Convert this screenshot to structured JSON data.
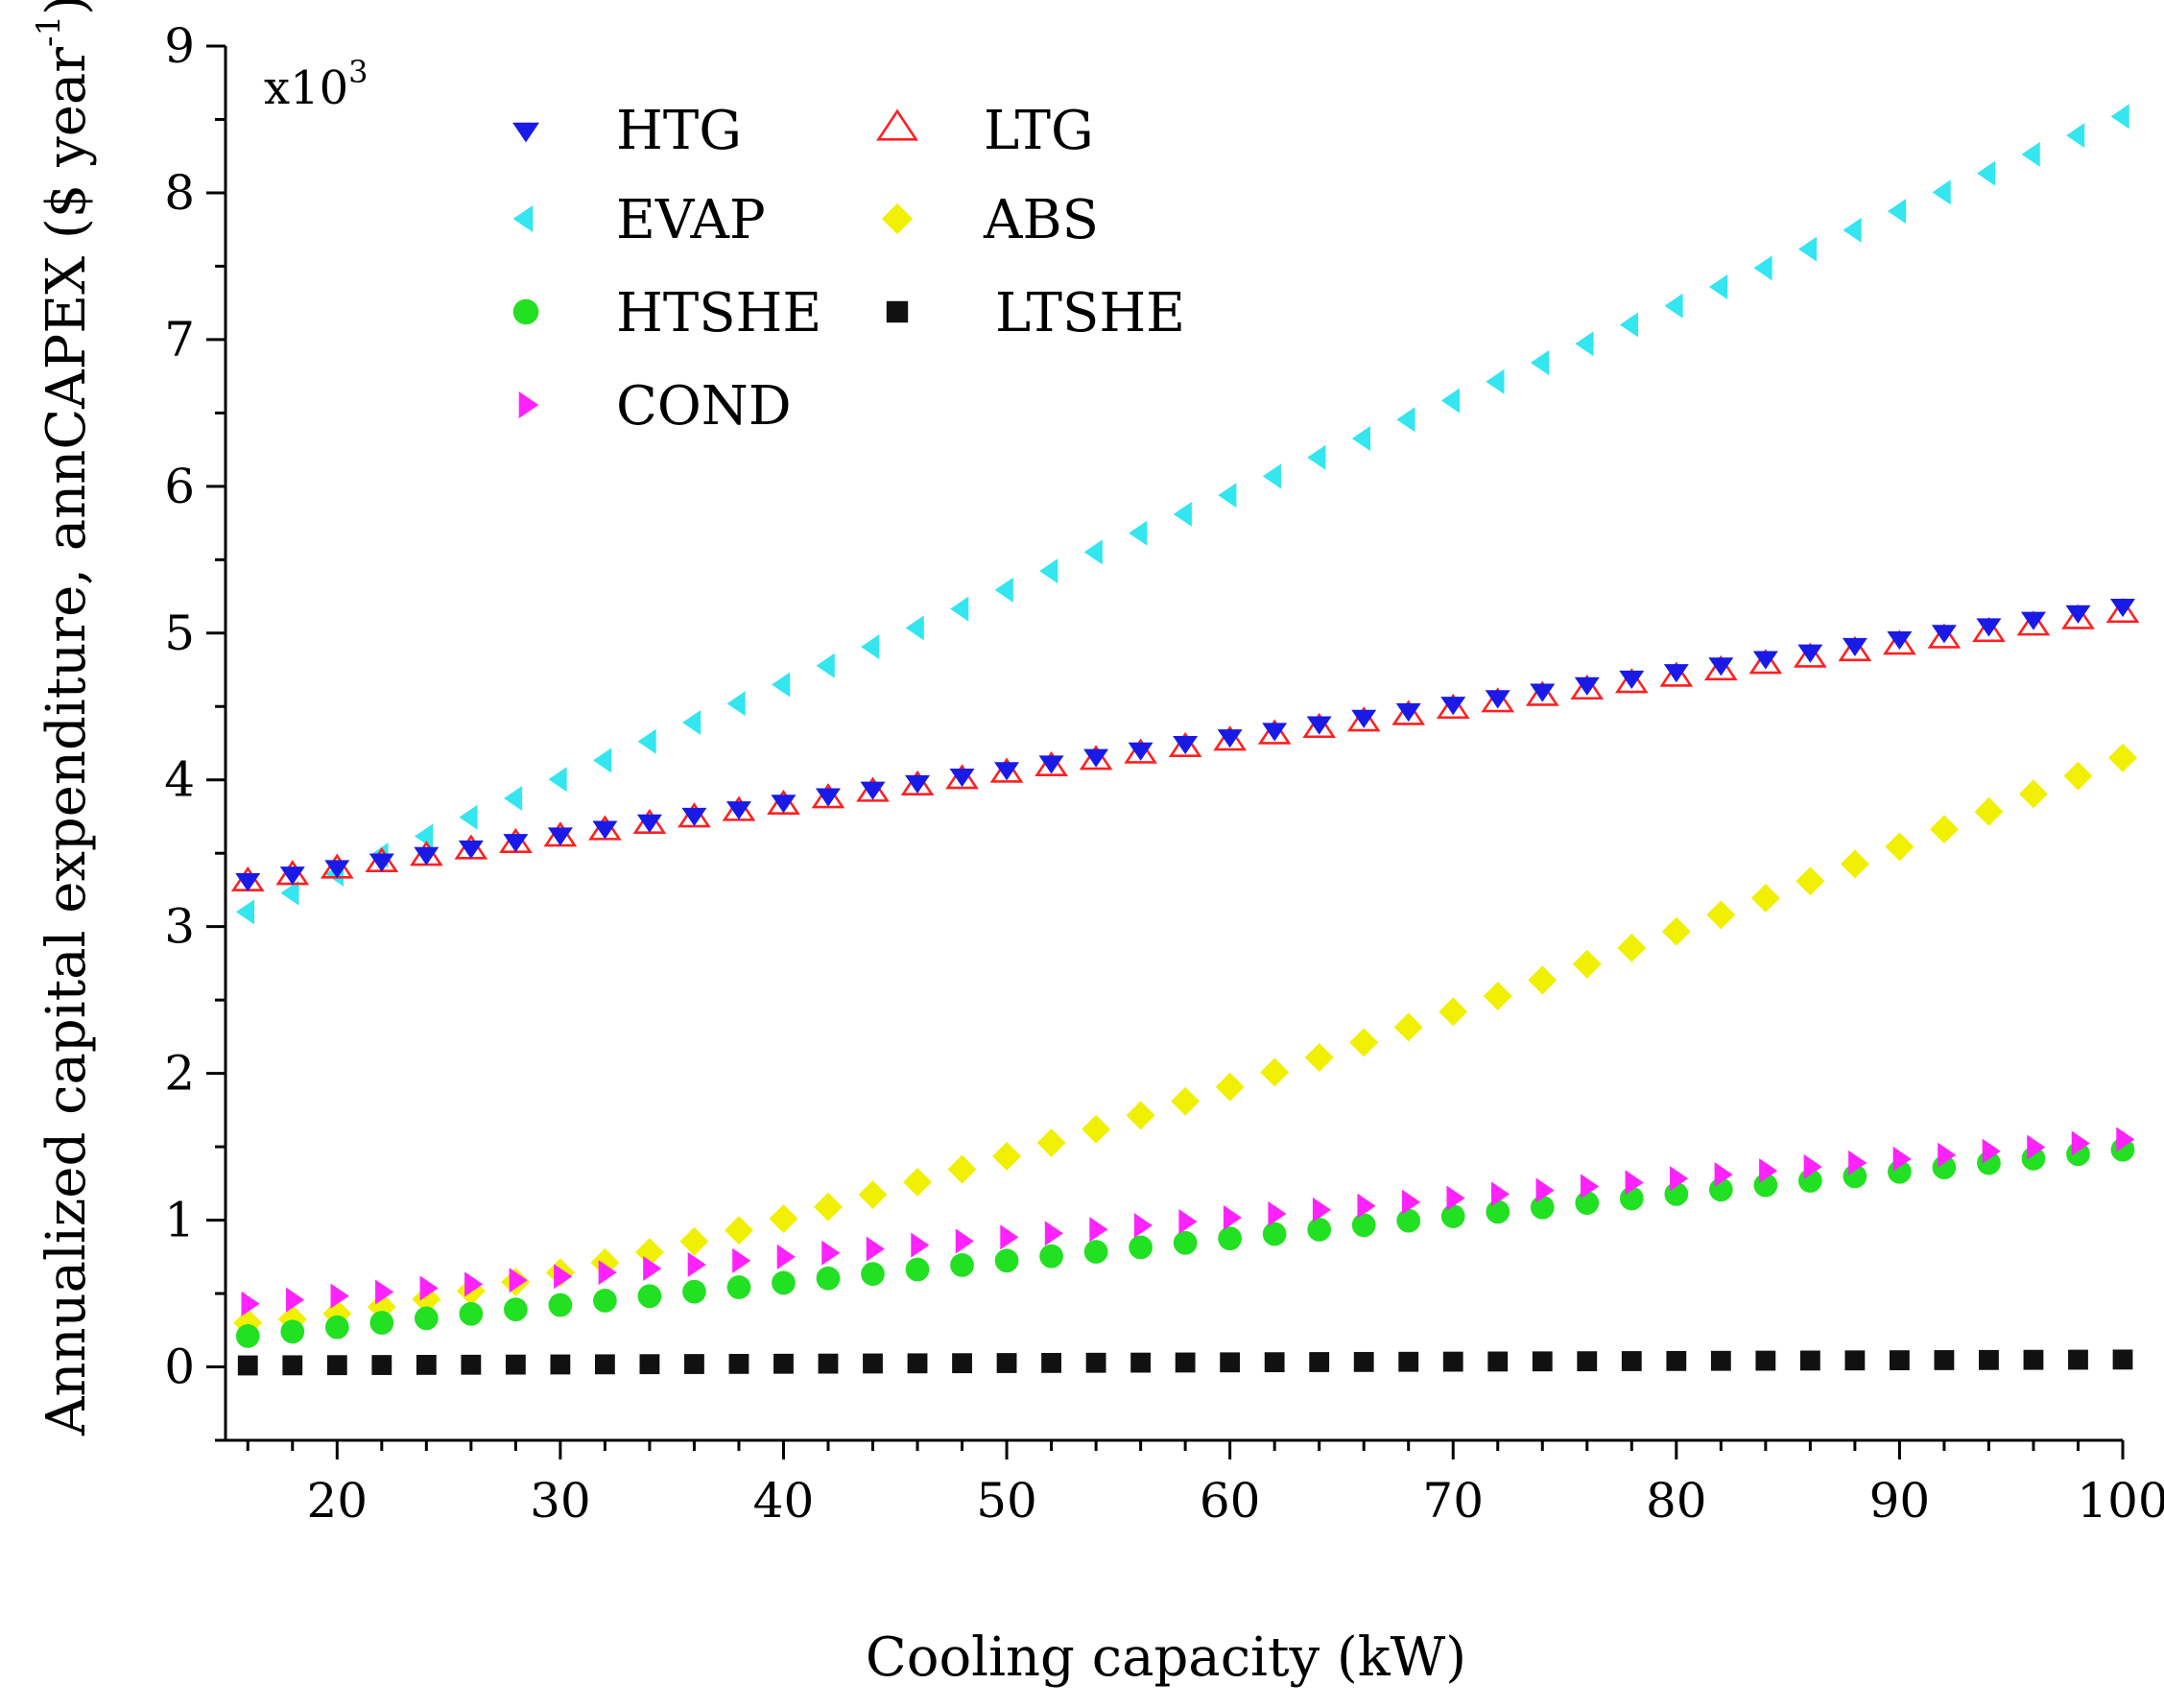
{
  "chart_data": {
    "type": "scatter",
    "title": "",
    "xlabel": "Cooling capacity (kW)",
    "ylabel_main": "Annualized capital expenditure, annCAPEX ($ year",
    "ylabel_sup": "-1",
    "ylabel_close": ")",
    "multiplier_base": "x10",
    "multiplier_exp": "3",
    "xlim": [
      15,
      100
    ],
    "ylim": [
      -0.5,
      9
    ],
    "x_ticks": [
      20,
      30,
      40,
      50,
      60,
      70,
      80,
      90,
      100
    ],
    "x_tick_labels": [
      "20",
      "30",
      "40",
      "50",
      "60",
      "70",
      "80",
      "90",
      "100"
    ],
    "y_ticks": [
      0,
      1,
      2,
      3,
      4,
      5,
      6,
      7,
      8,
      9
    ],
    "y_tick_labels": [
      "0",
      "1",
      "2",
      "3",
      "4",
      "5",
      "6",
      "7",
      "8",
      "9"
    ],
    "x_start": 16,
    "x_end": 100,
    "x_step": 2,
    "series": [
      {
        "name": "HTG",
        "marker": "triangle-down",
        "color": "#1a1ae6",
        "y_start": 3.32,
        "y_end": 5.19
      },
      {
        "name": "LTG",
        "marker": "triangle-up-open",
        "color": "#ff2020",
        "y_start": 3.3,
        "y_end": 5.13
      },
      {
        "name": "EVAP",
        "marker": "triangle-left",
        "color": "#33e6f0",
        "y_start": 3.1,
        "y_end": 8.52
      },
      {
        "name": "ABS",
        "marker": "diamond",
        "color": "#f0f000",
        "y_start": 0.3,
        "y_end": 4.15,
        "curve": 1.35
      },
      {
        "name": "HTSHE",
        "marker": "circle",
        "color": "#22e022",
        "y_start": 0.21,
        "y_end": 1.48
      },
      {
        "name": "LTSHE",
        "marker": "square",
        "color": "#111111",
        "y_start": 0.01,
        "y_end": 0.05
      },
      {
        "name": "COND",
        "marker": "triangle-right",
        "color": "#ff22ff",
        "y_start": 0.43,
        "y_end": 1.55
      }
    ],
    "legend_position": "top-left"
  }
}
